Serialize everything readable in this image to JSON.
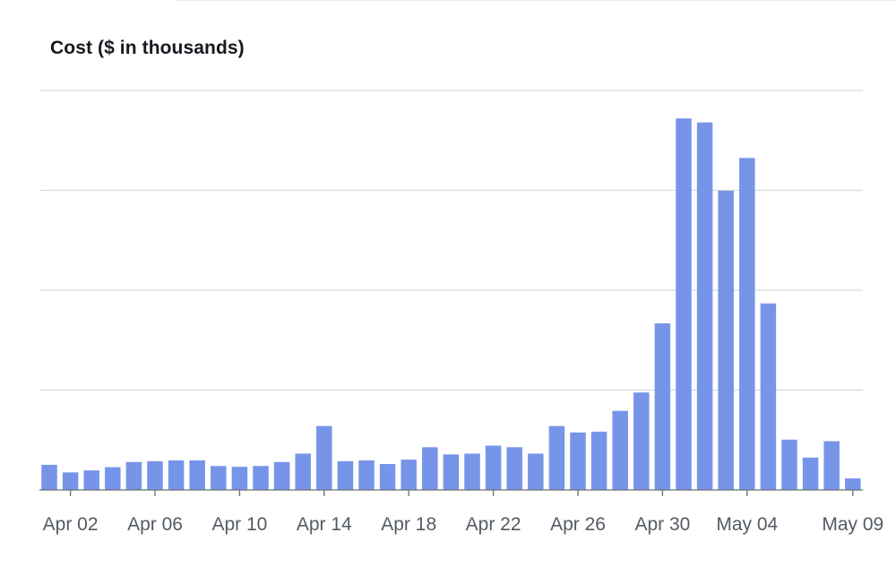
{
  "chart_data": {
    "type": "bar",
    "title": "Cost ($ in thousands)",
    "xlabel": "",
    "ylabel": "",
    "y_axis_labels_visible": false,
    "ylim": [
      0,
      100
    ],
    "gridlines": [
      25,
      50,
      75,
      100
    ],
    "bar_color": "#7795e8",
    "categories": [
      "Apr 01",
      "Apr 02",
      "Apr 03",
      "Apr 04",
      "Apr 05",
      "Apr 06",
      "Apr 07",
      "Apr 08",
      "Apr 09",
      "Apr 10",
      "Apr 11",
      "Apr 12",
      "Apr 13",
      "Apr 14",
      "Apr 15",
      "Apr 16",
      "Apr 17",
      "Apr 18",
      "Apr 19",
      "Apr 20",
      "Apr 21",
      "Apr 22",
      "Apr 23",
      "Apr 24",
      "Apr 25",
      "Apr 26",
      "Apr 27",
      "Apr 28",
      "Apr 29",
      "Apr 30",
      "May 01",
      "May 02",
      "May 03",
      "May 04",
      "May 05",
      "May 06",
      "May 07",
      "May 08",
      "May 09"
    ],
    "values": [
      6.3,
      4.4,
      4.9,
      5.7,
      7.0,
      7.2,
      7.4,
      7.4,
      6.0,
      5.8,
      6.0,
      7.0,
      9.1,
      16.0,
      7.2,
      7.4,
      6.5,
      7.6,
      10.7,
      8.9,
      9.1,
      11.1,
      10.7,
      9.1,
      16.0,
      14.4,
      14.6,
      19.8,
      24.4,
      41.7,
      93.0,
      92.0,
      74.9,
      83.1,
      46.7,
      12.6,
      8.1,
      12.2,
      2.9
    ],
    "tick_labels": [
      "Apr 02",
      "Apr 06",
      "Apr 10",
      "Apr 14",
      "Apr 18",
      "Apr 22",
      "Apr 26",
      "Apr 30",
      "May 04",
      "May 09"
    ],
    "tick_indices": [
      1,
      5,
      9,
      13,
      17,
      21,
      25,
      29,
      33,
      38
    ]
  }
}
